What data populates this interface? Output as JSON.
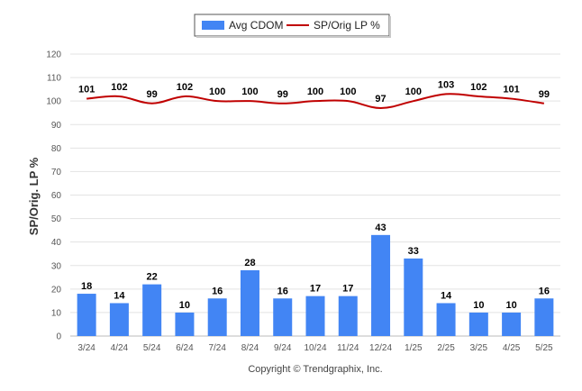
{
  "chart_data": {
    "type": "bar",
    "categories": [
      "3/24",
      "4/24",
      "5/24",
      "6/24",
      "7/24",
      "8/24",
      "9/24",
      "10/24",
      "11/24",
      "12/24",
      "1/25",
      "2/25",
      "3/25",
      "4/25",
      "5/25"
    ],
    "series": [
      {
        "name": "Avg CDOM",
        "kind": "bar",
        "color": "#4285f4",
        "values": [
          18,
          14,
          22,
          10,
          16,
          28,
          16,
          17,
          17,
          43,
          33,
          14,
          10,
          10,
          16
        ]
      },
      {
        "name": "SP/Orig LP %",
        "kind": "line",
        "color": "#c00000",
        "values": [
          101,
          102,
          99,
          102,
          100,
          100,
          99,
          100,
          100,
          97,
          100,
          103,
          102,
          101,
          99
        ]
      }
    ],
    "ylabel": "SP/Orig. LP %",
    "ylim": [
      0,
      120
    ],
    "yticks": [
      0,
      10,
      20,
      30,
      40,
      50,
      60,
      70,
      80,
      90,
      100,
      110,
      120
    ],
    "grid": true,
    "legend_position": "top-center"
  },
  "footer": {
    "copyright": "Copyright © Trendgraphix, Inc."
  }
}
